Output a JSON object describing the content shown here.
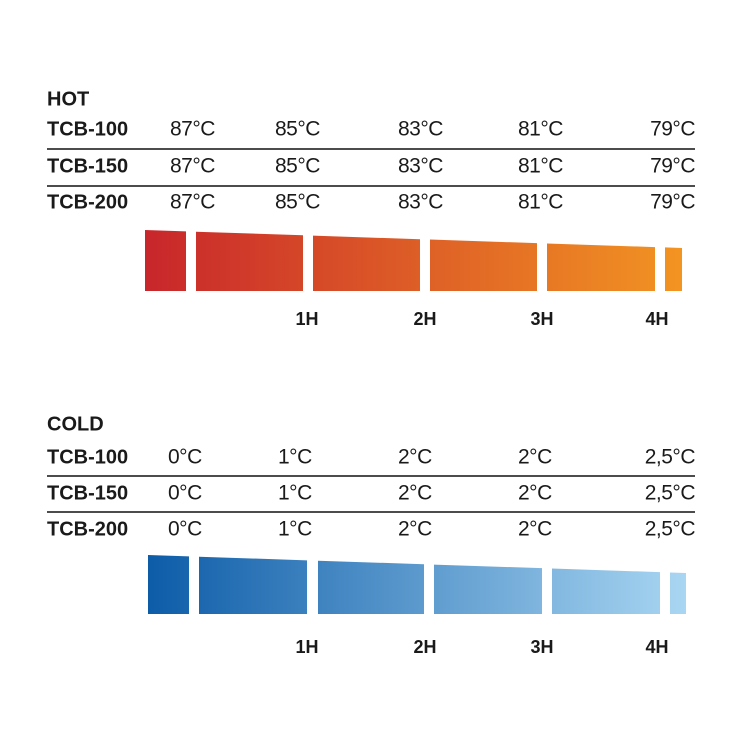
{
  "sections": [
    {
      "title": "HOT",
      "rows": [
        {
          "label": "TCB-100",
          "values": [
            "87°C",
            "85°C",
            "83°C",
            "81°C",
            "79°C"
          ]
        },
        {
          "label": "TCB-150",
          "values": [
            "87°C",
            "85°C",
            "83°C",
            "81°C",
            "79°C"
          ]
        },
        {
          "label": "TCB-200",
          "values": [
            "87°C",
            "85°C",
            "83°C",
            "81°C",
            "79°C"
          ]
        }
      ],
      "hours": [
        "1H",
        "2H",
        "3H",
        "4H"
      ]
    },
    {
      "title": "COLD",
      "rows": [
        {
          "label": "TCB-100",
          "values": [
            "0°C",
            "1°C",
            "2°C",
            "2°C",
            "2,5°C"
          ]
        },
        {
          "label": "TCB-150",
          "values": [
            "0°C",
            "1°C",
            "2°C",
            "2°C",
            "2,5°C"
          ]
        },
        {
          "label": "TCB-200",
          "values": [
            "0°C",
            "1°C",
            "2°C",
            "2°C",
            "2,5°C"
          ]
        }
      ],
      "hours": [
        "1H",
        "2H",
        "3H",
        "4H"
      ]
    }
  ]
}
